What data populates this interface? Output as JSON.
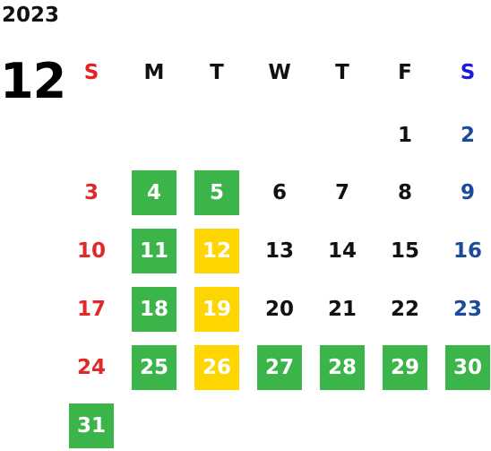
{
  "year": "2023",
  "month": "12",
  "weekdays": [
    {
      "label": "S",
      "color": "#e82020"
    },
    {
      "label": "M",
      "color": "#111111"
    },
    {
      "label": "T",
      "color": "#111111"
    },
    {
      "label": "W",
      "color": "#111111"
    },
    {
      "label": "T",
      "color": "#111111"
    },
    {
      "label": "F",
      "color": "#111111"
    },
    {
      "label": "S",
      "color": "#1a1ae0"
    }
  ],
  "colors": {
    "green": "#3bb54a",
    "yellow": "#ffd500",
    "sunday": "#e02a2a",
    "saturday": "#1e4a9c"
  },
  "days": [
    {
      "day": "1",
      "highlight": "none"
    },
    {
      "day": "2",
      "highlight": "none"
    },
    {
      "day": "3",
      "highlight": "none"
    },
    {
      "day": "4",
      "highlight": "green"
    },
    {
      "day": "5",
      "highlight": "green"
    },
    {
      "day": "6",
      "highlight": "none"
    },
    {
      "day": "7",
      "highlight": "none"
    },
    {
      "day": "8",
      "highlight": "none"
    },
    {
      "day": "9",
      "highlight": "none"
    },
    {
      "day": "10",
      "highlight": "none"
    },
    {
      "day": "11",
      "highlight": "green"
    },
    {
      "day": "12",
      "highlight": "yellow"
    },
    {
      "day": "13",
      "highlight": "none"
    },
    {
      "day": "14",
      "highlight": "none"
    },
    {
      "day": "15",
      "highlight": "none"
    },
    {
      "day": "16",
      "highlight": "none"
    },
    {
      "day": "17",
      "highlight": "none"
    },
    {
      "day": "18",
      "highlight": "green"
    },
    {
      "day": "19",
      "highlight": "yellow"
    },
    {
      "day": "20",
      "highlight": "none"
    },
    {
      "day": "21",
      "highlight": "none"
    },
    {
      "day": "22",
      "highlight": "none"
    },
    {
      "day": "23",
      "highlight": "none"
    },
    {
      "day": "24",
      "highlight": "none"
    },
    {
      "day": "25",
      "highlight": "green"
    },
    {
      "day": "26",
      "highlight": "yellow"
    },
    {
      "day": "27",
      "highlight": "green"
    },
    {
      "day": "28",
      "highlight": "green"
    },
    {
      "day": "29",
      "highlight": "green"
    },
    {
      "day": "30",
      "highlight": "green"
    },
    {
      "day": "31",
      "highlight": "green"
    }
  ]
}
